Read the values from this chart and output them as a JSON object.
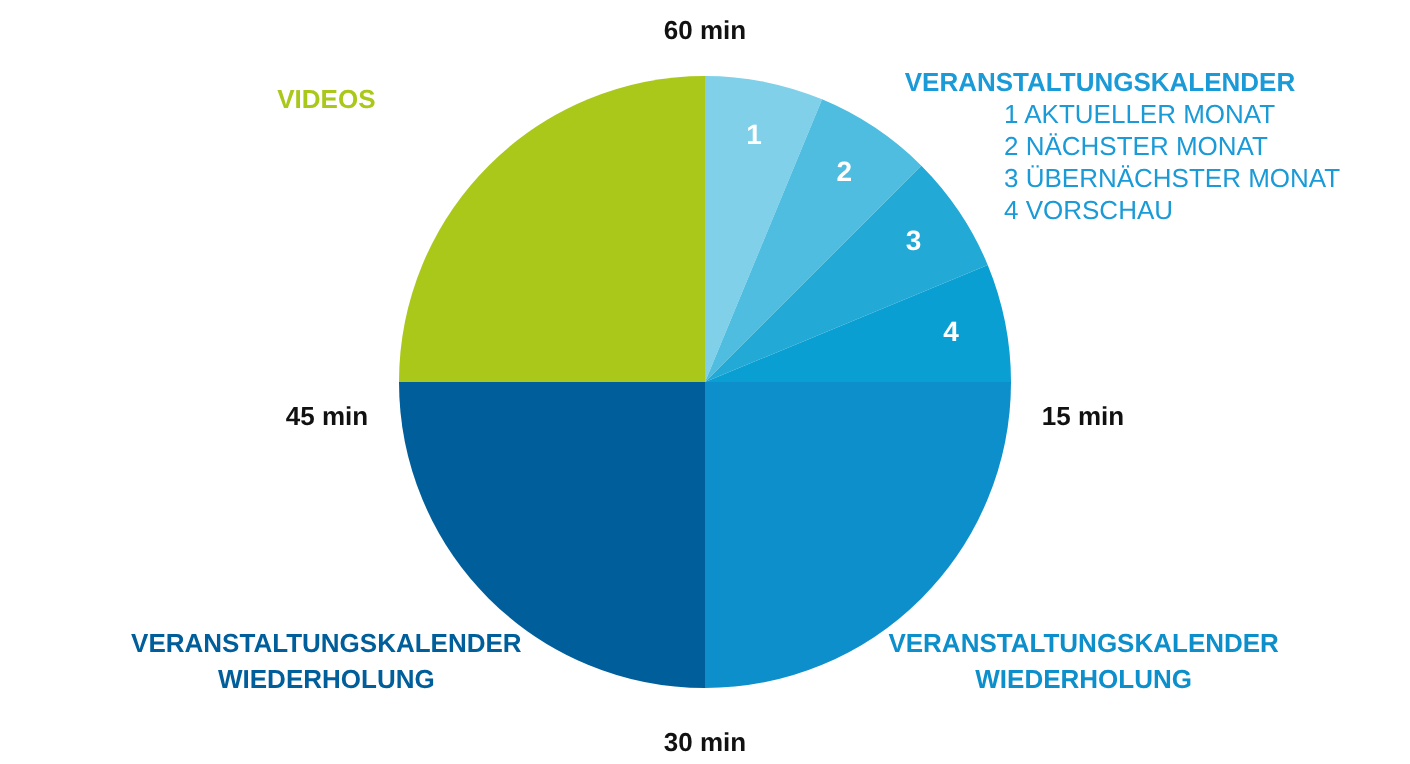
{
  "chart_data": {
    "type": "pie",
    "categories": [
      "1",
      "2",
      "3",
      "4",
      "VERANSTALTUNGSKALENDER WIEDERHOLUNG",
      "VERANSTALTUNGSKALENDER WIEDERHOLUNG",
      "VIDEOS"
    ],
    "values": [
      6.25,
      6.25,
      6.25,
      6.25,
      25,
      25,
      25
    ],
    "colors": [
      "#7fd0e8",
      "#4fbde0",
      "#22a9d6",
      "#0a9fd3",
      "#0d8fcb",
      "#005f9b",
      "#a9c81a"
    ],
    "annotations": [
      "60 min",
      "15 min",
      "30 min",
      "45 min",
      "VERANSTALTUNGSKALENDER",
      "1 AKTUELLER MONAT",
      "2 NÄCHSTER MONAT",
      "3 ÜBERNÄCHSTER MONAT",
      "4 VORSCHAU"
    ],
    "legend": false
  }
}
